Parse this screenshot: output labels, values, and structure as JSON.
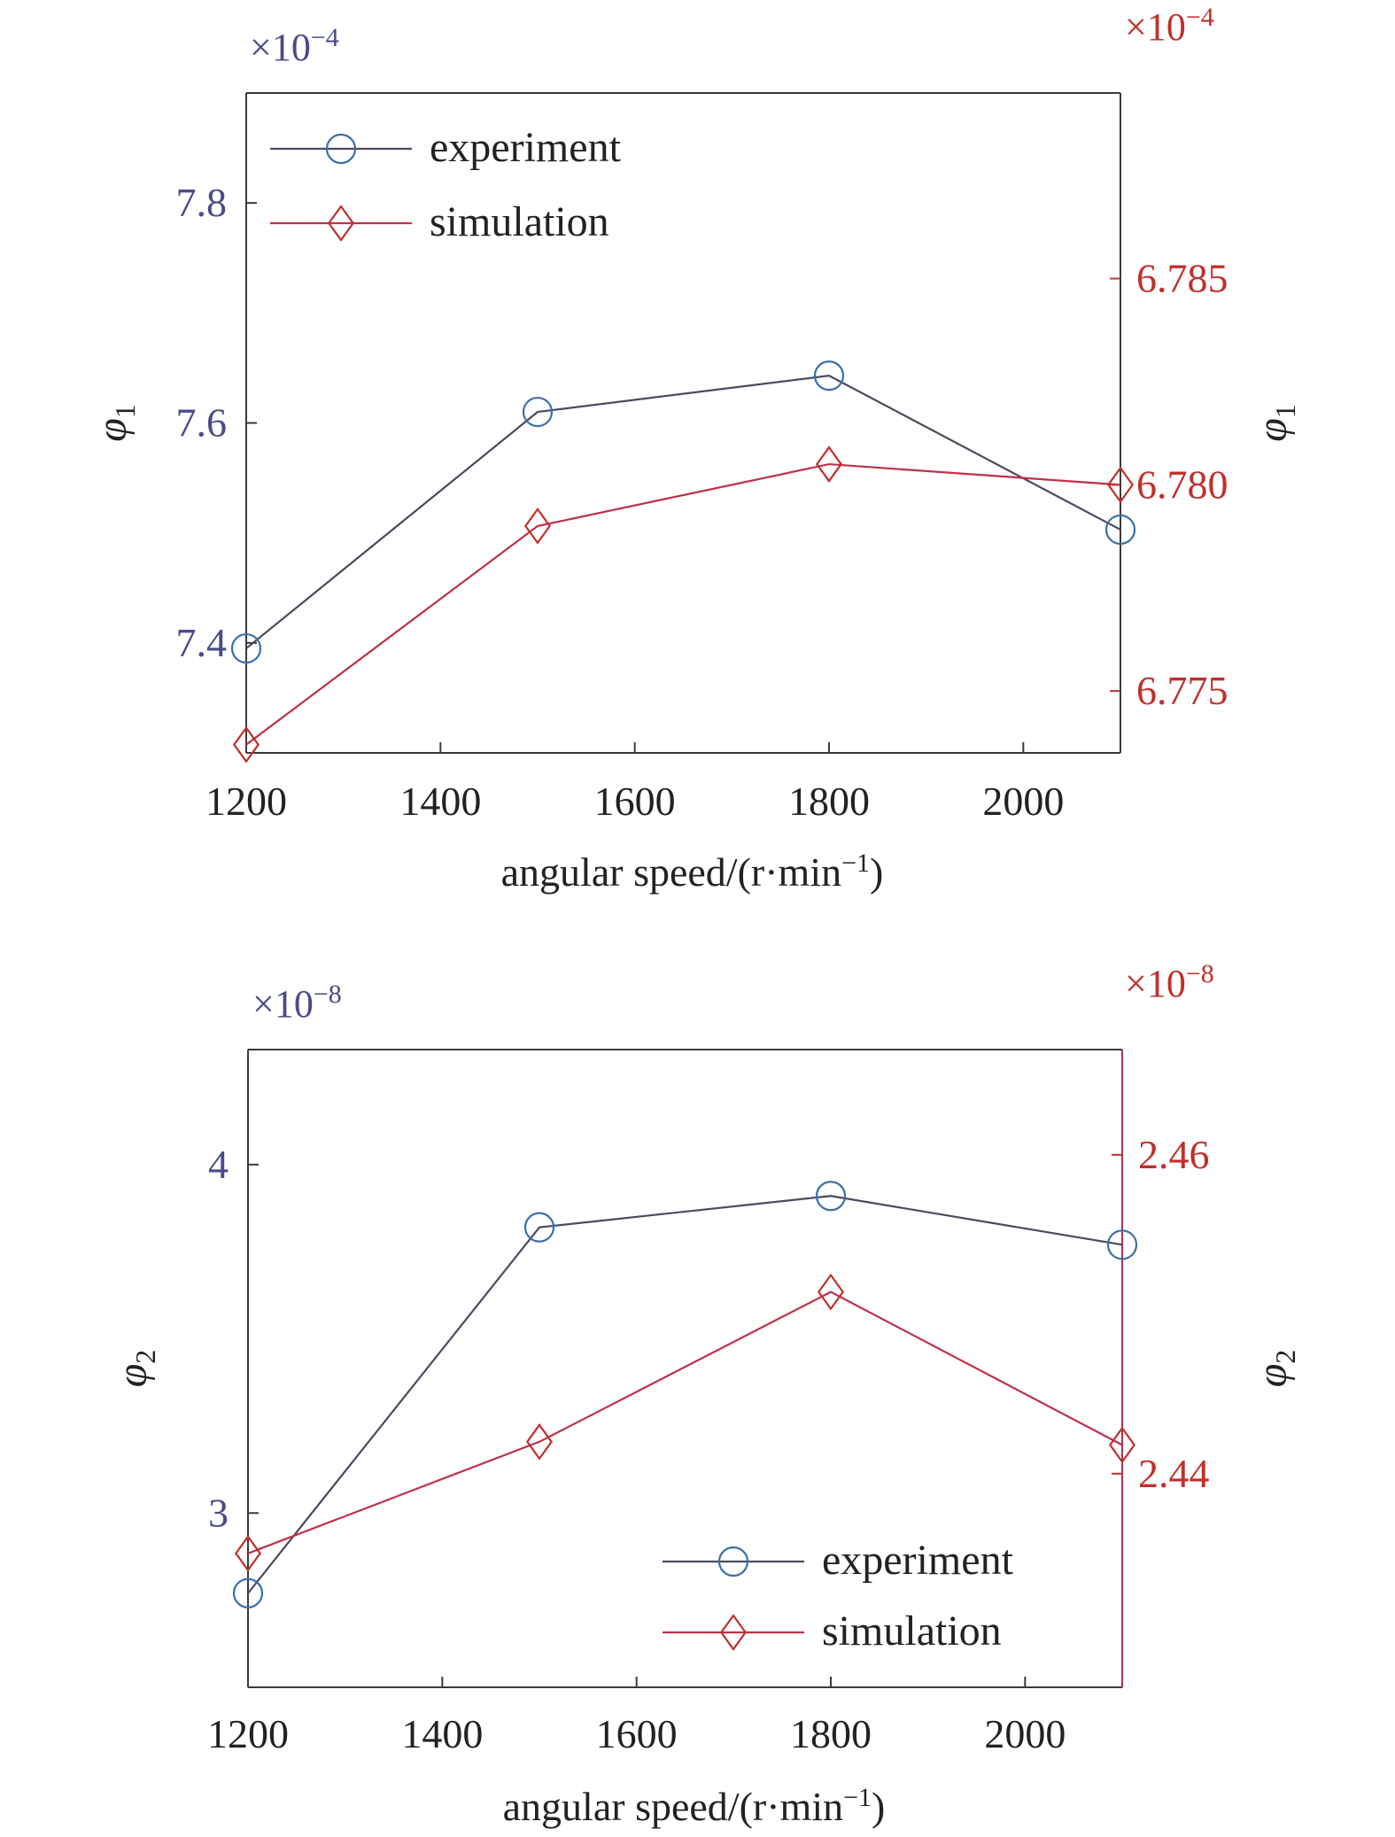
{
  "chart_data": [
    {
      "type": "line",
      "xlabel": "angular speed/(r·min",
      "xlabel_sup": "−1",
      "xlabel_tail": ")",
      "xlim": [
        1200,
        2100
      ],
      "xticks": [
        1200,
        1400,
        1600,
        1800,
        2000
      ],
      "x": [
        1200,
        1500,
        1800,
        2100
      ],
      "y_left": {
        "label": "φ",
        "label_sub": "1",
        "multiplier": "×10",
        "exponent": "−4",
        "ylim": [
          7.3,
          7.9
        ],
        "ticks": [
          7.4,
          7.6,
          7.8
        ],
        "tick_labels": [
          "7.4",
          "7.6",
          "7.8"
        ]
      },
      "y_right": {
        "label": "φ",
        "label_sub": "1",
        "multiplier": "×10",
        "exponent": "−4",
        "ylim": [
          6.7735,
          6.7895
        ],
        "ticks": [
          6.775,
          6.78,
          6.785
        ],
        "tick_labels": [
          "6.775",
          "6.780",
          "6.785"
        ]
      },
      "series": [
        {
          "name": "experiment",
          "axis": "left",
          "marker": "circle",
          "values": [
            7.395,
            7.61,
            7.643,
            7.503
          ]
        },
        {
          "name": "simulation",
          "axis": "right",
          "marker": "diamond",
          "values": [
            6.7737,
            6.779,
            6.7805,
            6.78
          ]
        }
      ],
      "legend": "top-left",
      "grid": false
    },
    {
      "type": "line",
      "xlabel": "angular speed/(r·min",
      "xlabel_sup": "−1",
      "xlabel_tail": ")",
      "xlim": [
        1200,
        2100
      ],
      "xticks": [
        1200,
        1400,
        1600,
        1800,
        2000
      ],
      "x": [
        1200,
        1500,
        1800,
        2100
      ],
      "y_left": {
        "label": "φ",
        "label_sub": "2",
        "multiplier": "×10",
        "exponent": "−8",
        "ylim": [
          2.5,
          4.33
        ],
        "ticks": [
          3,
          4
        ],
        "tick_labels": [
          "3",
          "4"
        ]
      },
      "y_right": {
        "label": "φ",
        "label_sub": "2",
        "multiplier": "×10",
        "exponent": "−8",
        "ylim": [
          2.4266,
          2.4666
        ],
        "ticks": [
          2.44,
          2.46
        ],
        "tick_labels": [
          "2.44",
          "2.46"
        ]
      },
      "series": [
        {
          "name": "experiment",
          "axis": "left",
          "marker": "circle",
          "values": [
            2.77,
            3.82,
            3.91,
            3.77
          ]
        },
        {
          "name": "simulation",
          "axis": "right",
          "marker": "diamond",
          "values": [
            2.435,
            2.442,
            2.4514,
            2.4418
          ]
        }
      ],
      "legend": "bottom-right",
      "grid": false
    }
  ],
  "colors": {
    "axis": "#3a3a3a",
    "experiment_line": "#4a4a5e",
    "experiment_marker": "#3a6fa8",
    "simulation_line": "#c0304a",
    "simulation_marker": "#c0302c",
    "left_tick": "#4b4b8a",
    "right_tick": "#c0302c",
    "right_axis_line": "#b03050"
  }
}
